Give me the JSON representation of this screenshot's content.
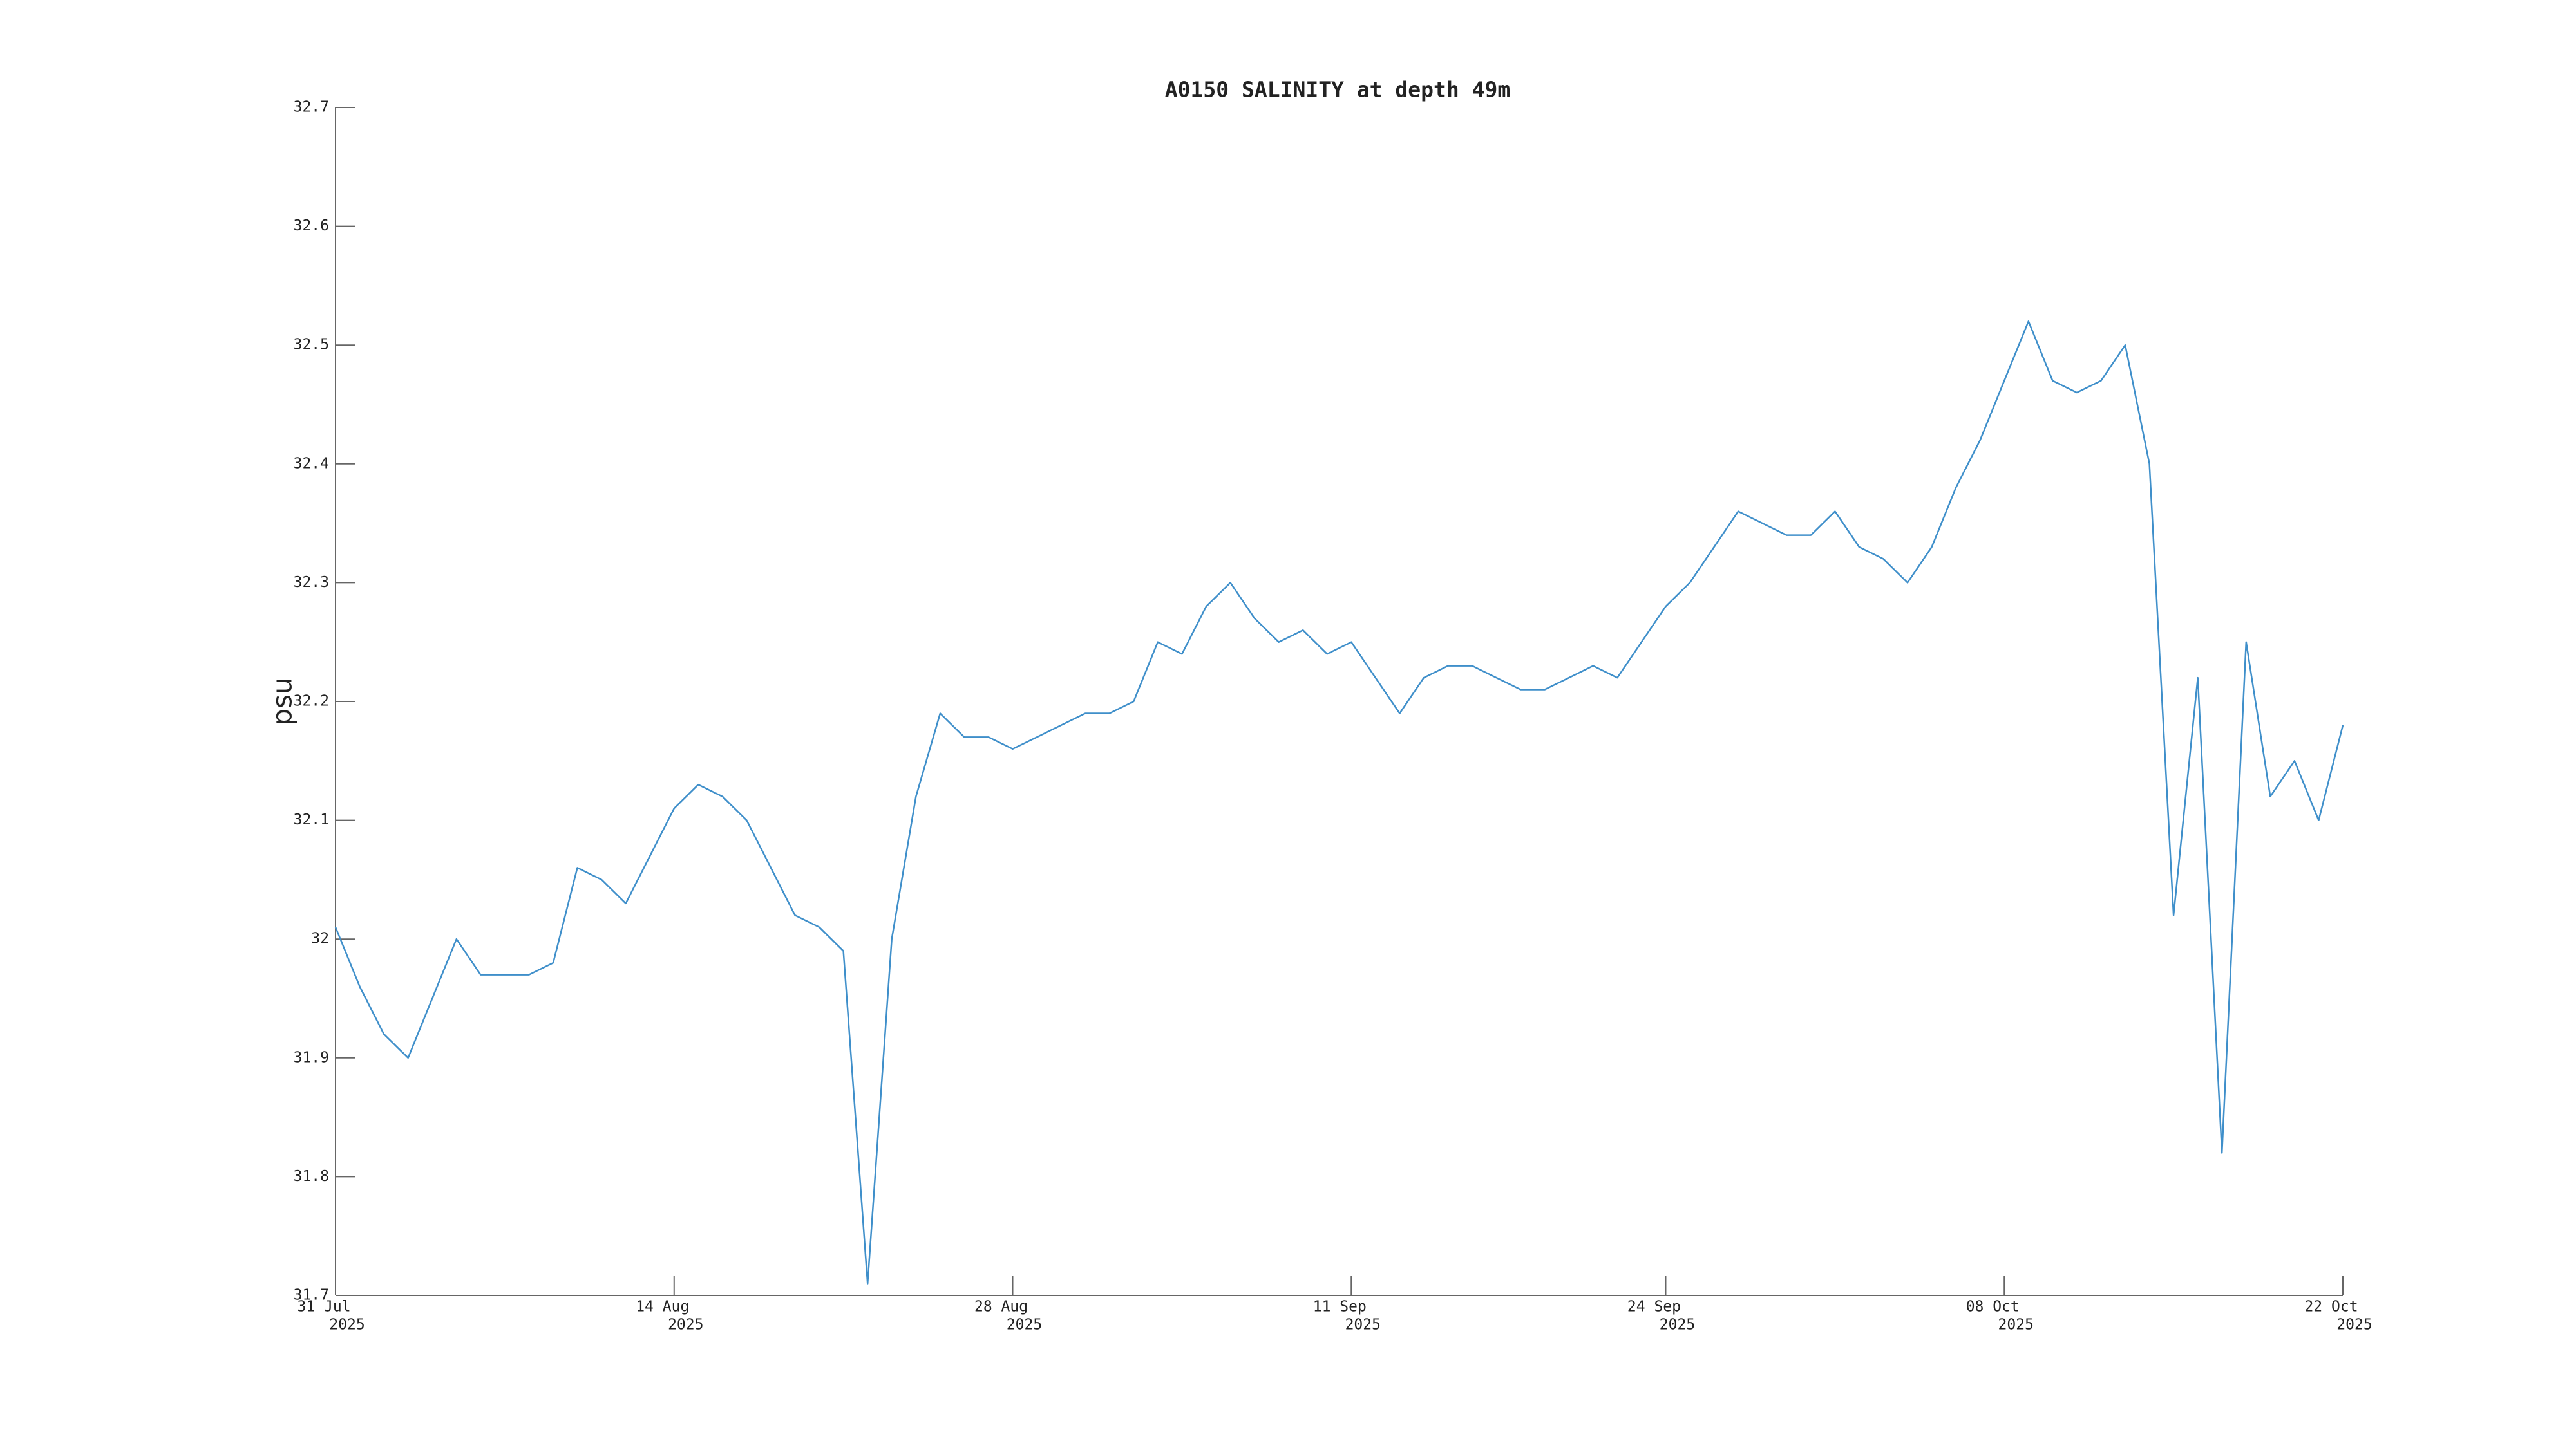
{
  "chart_data": {
    "type": "line",
    "title": "A0150 SALINITY at depth 49m",
    "ylabel": "psu",
    "x": [
      "2025-07-31",
      "2025-08-01",
      "2025-08-02",
      "2025-08-03",
      "2025-08-04",
      "2025-08-05",
      "2025-08-06",
      "2025-08-07",
      "2025-08-08",
      "2025-08-09",
      "2025-08-10",
      "2025-08-11",
      "2025-08-12",
      "2025-08-13",
      "2025-08-14",
      "2025-08-15",
      "2025-08-16",
      "2025-08-17",
      "2025-08-18",
      "2025-08-19",
      "2025-08-20",
      "2025-08-21",
      "2025-08-22",
      "2025-08-23",
      "2025-08-24",
      "2025-08-25",
      "2025-08-26",
      "2025-08-27",
      "2025-08-28",
      "2025-08-29",
      "2025-08-30",
      "2025-08-31",
      "2025-09-01",
      "2025-09-02",
      "2025-09-03",
      "2025-09-04",
      "2025-09-05",
      "2025-09-06",
      "2025-09-07",
      "2025-09-08",
      "2025-09-09",
      "2025-09-10",
      "2025-09-11",
      "2025-09-12",
      "2025-09-13",
      "2025-09-14",
      "2025-09-15",
      "2025-09-16",
      "2025-09-17",
      "2025-09-18",
      "2025-09-19",
      "2025-09-20",
      "2025-09-21",
      "2025-09-22",
      "2025-09-23",
      "2025-09-24",
      "2025-09-25",
      "2025-09-26",
      "2025-09-27",
      "2025-09-28",
      "2025-09-29",
      "2025-09-30",
      "2025-10-01",
      "2025-10-02",
      "2025-10-03",
      "2025-10-04",
      "2025-10-05",
      "2025-10-06",
      "2025-10-07",
      "2025-10-08",
      "2025-10-09",
      "2025-10-10",
      "2025-10-11",
      "2025-10-12",
      "2025-10-13",
      "2025-10-14",
      "2025-10-15",
      "2025-10-16",
      "2025-10-17",
      "2025-10-18",
      "2025-10-19",
      "2025-10-20",
      "2025-10-21",
      "2025-10-22"
    ],
    "series": [
      {
        "name": "SALINITY",
        "color": "#3f8fca",
        "values": [
          32.01,
          31.96,
          31.92,
          31.9,
          31.95,
          32.0,
          31.97,
          31.97,
          31.97,
          31.98,
          32.06,
          32.05,
          32.03,
          32.07,
          32.11,
          32.13,
          32.12,
          32.1,
          32.06,
          32.02,
          32.01,
          31.99,
          31.71,
          32.0,
          32.12,
          32.19,
          32.17,
          32.17,
          32.16,
          32.17,
          32.18,
          32.19,
          32.19,
          32.2,
          32.25,
          32.24,
          32.28,
          32.3,
          32.27,
          32.25,
          32.26,
          32.24,
          32.25,
          32.22,
          32.19,
          32.22,
          32.23,
          32.23,
          32.22,
          32.21,
          32.21,
          32.22,
          32.23,
          32.22,
          32.25,
          32.28,
          32.3,
          32.33,
          32.36,
          32.35,
          32.34,
          32.34,
          32.36,
          32.33,
          32.32,
          32.3,
          32.33,
          32.38,
          32.42,
          32.47,
          32.52,
          32.47,
          32.46,
          32.47,
          32.5,
          32.4,
          32.02,
          32.22,
          31.82,
          32.25,
          32.12,
          32.15,
          32.1,
          32.18
        ]
      }
    ],
    "xlim": [
      "2025-07-31",
      "2025-10-22"
    ],
    "xticks": [
      {
        "value": "2025-07-31",
        "label": "31 Jul",
        "sublabel": "2025"
      },
      {
        "value": "2025-08-14",
        "label": "14 Aug",
        "sublabel": "2025"
      },
      {
        "value": "2025-08-28",
        "label": "28 Aug",
        "sublabel": "2025"
      },
      {
        "value": "2025-09-11",
        "label": "11 Sep",
        "sublabel": "2025"
      },
      {
        "value": "2025-09-24",
        "label": "24 Sep",
        "sublabel": "2025"
      },
      {
        "value": "2025-10-08",
        "label": "08 Oct",
        "sublabel": "2025"
      },
      {
        "value": "2025-10-22",
        "label": "22 Oct",
        "sublabel": "2025"
      }
    ],
    "ylim": [
      31.7,
      32.7
    ],
    "yticks": [
      31.7,
      31.8,
      31.9,
      32,
      32.1,
      32.2,
      32.3,
      32.4,
      32.5,
      32.6,
      32.7
    ]
  }
}
